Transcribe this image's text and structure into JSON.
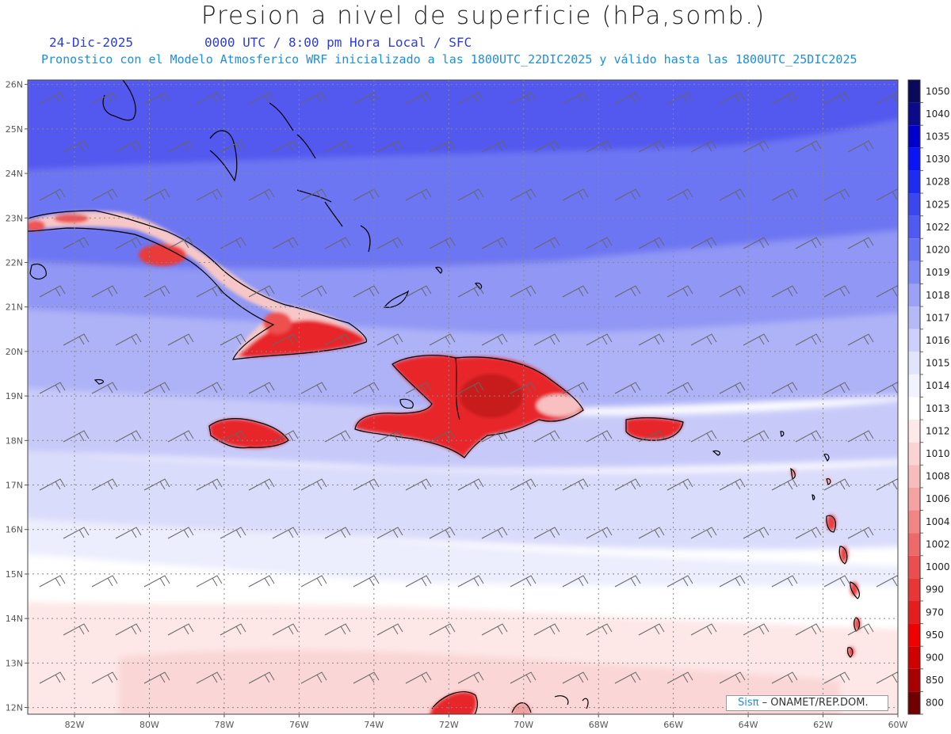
{
  "header": {
    "title": "Presion a nivel de superficie (hPa,somb.)",
    "date": "24-Dic-2025",
    "time_line": "0000 UTC / 8:00 pm Hora Local / SFC",
    "model_line": "Pronostico con el Modelo Atmosferico WRF inicializado a las 1800UTC_22DIC2025 y válido hasta las  1800UTC_25DIC2025"
  },
  "map": {
    "lat_labels": [
      "26N",
      "25N",
      "24N",
      "23N",
      "22N",
      "21N",
      "20N",
      "19N",
      "18N",
      "17N",
      "16N",
      "15N",
      "14N",
      "13N",
      "12N"
    ],
    "lon_labels": [
      "82W",
      "80W",
      "78W",
      "76W",
      "74W",
      "72W",
      "70W",
      "68W",
      "66W",
      "64W",
      "62W",
      "60W"
    ],
    "extent": {
      "lon": [
        -83.25,
        -60.0
      ],
      "lat": [
        11.85,
        26.1
      ]
    },
    "land_color": "#e8242a",
    "coast_color": "#000000"
  },
  "colorbar": {
    "levels": [
      {
        "label": "1050",
        "color": "#0a0a5c"
      },
      {
        "label": "1040",
        "color": "#0a0a8a"
      },
      {
        "label": "1035",
        "color": "#0000cc"
      },
      {
        "label": "1030",
        "color": "#0a14f5"
      },
      {
        "label": "1028",
        "color": "#1e2cf0"
      },
      {
        "label": "1025",
        "color": "#3a46ee"
      },
      {
        "label": "1022",
        "color": "#4e5af0"
      },
      {
        "label": "1020",
        "color": "#6670f2"
      },
      {
        "label": "1019",
        "color": "#7f88f4"
      },
      {
        "label": "1018",
        "color": "#9aa1f6"
      },
      {
        "label": "1017",
        "color": "#b4b9f8"
      },
      {
        "label": "1016",
        "color": "#ccd0fa"
      },
      {
        "label": "1015",
        "color": "#e2e4fc"
      },
      {
        "label": "1014",
        "color": "#f2f3fe"
      },
      {
        "label": "1013",
        "color": "#ffffff"
      },
      {
        "label": "1012",
        "color": "#fde9e9"
      },
      {
        "label": "1010",
        "color": "#fbd3d3"
      },
      {
        "label": "1008",
        "color": "#f8bcbc"
      },
      {
        "label": "1006",
        "color": "#f5a2a2"
      },
      {
        "label": "1004",
        "color": "#f28686"
      },
      {
        "label": "1002",
        "color": "#ee6a6a"
      },
      {
        "label": "1000",
        "color": "#ea4e4e"
      },
      {
        "label": "990",
        "color": "#e63636"
      },
      {
        "label": "970",
        "color": "#e41e1e"
      },
      {
        "label": "950",
        "color": "#f00000"
      },
      {
        "label": "900",
        "color": "#d00000"
      },
      {
        "label": "850",
        "color": "#a80000"
      },
      {
        "label": "800",
        "color": "#700000"
      }
    ]
  },
  "credit": {
    "logo": "Sisπ",
    "text": " – ONAMET/REP.DOM."
  }
}
